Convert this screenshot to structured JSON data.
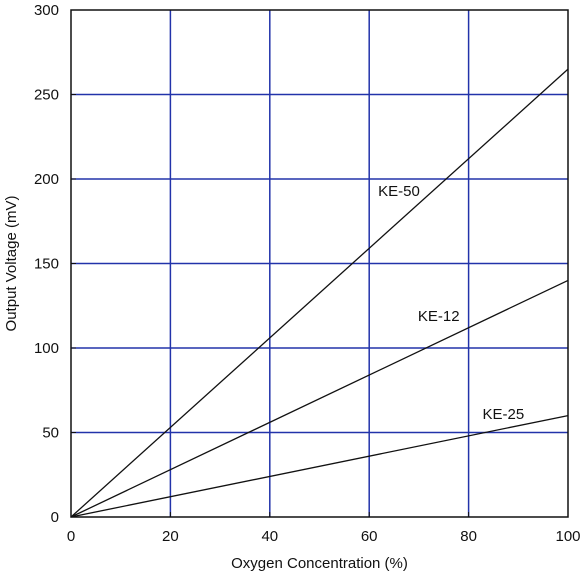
{
  "chart_data": {
    "type": "line",
    "xlabel": "Oxygen Concentration (%)",
    "ylabel": "Output Voltage (mV)",
    "xlim": [
      0,
      100
    ],
    "ylim": [
      0,
      300
    ],
    "x_ticks": [
      0,
      20,
      40,
      60,
      80,
      100
    ],
    "y_ticks": [
      0,
      50,
      100,
      150,
      200,
      250,
      300
    ],
    "grid": true,
    "legend": "inline labels",
    "colors": {
      "grid": "#2233aa",
      "line": "#111111",
      "frame": "#111111"
    },
    "series": [
      {
        "name": "KE-50",
        "x": [
          0,
          100
        ],
        "y": [
          0,
          265
        ],
        "label_at": [
          66,
          190
        ]
      },
      {
        "name": "KE-12",
        "x": [
          0,
          100
        ],
        "y": [
          0,
          140
        ],
        "label_at": [
          74,
          116
        ]
      },
      {
        "name": "KE-25",
        "x": [
          0,
          100
        ],
        "y": [
          0,
          60
        ],
        "label_at": [
          87,
          58
        ]
      }
    ]
  }
}
